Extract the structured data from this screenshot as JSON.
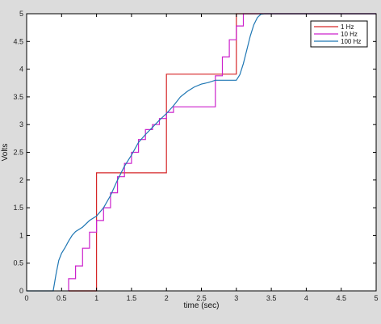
{
  "chart_data": {
    "type": "line",
    "xlabel": "time (sec)",
    "ylabel": "Volts",
    "xlim": [
      0,
      5
    ],
    "ylim": [
      0,
      5
    ],
    "xticks": [
      0,
      0.5,
      1,
      1.5,
      2,
      2.5,
      3,
      3.5,
      4,
      4.5,
      5
    ],
    "xtick_labels": [
      "0",
      "0.5",
      "1",
      "1.5",
      "2",
      "2.5",
      "3",
      "3.5",
      "4",
      "4.5",
      "5"
    ],
    "yticks": [
      0,
      0.5,
      1,
      1.5,
      2,
      2.5,
      3,
      3.5,
      4,
      4.5,
      5
    ],
    "ytick_labels": [
      "0",
      "0.5",
      "1",
      "1.5",
      "2",
      "2.5",
      "3",
      "3.5",
      "4",
      "4.5",
      "5"
    ],
    "grid": false,
    "legend_position": "top-right",
    "series": [
      {
        "name": "1 Hz",
        "color": "#d62728",
        "step": true,
        "x": [
          0.6,
          1,
          2,
          3,
          5
        ],
        "y": [
          0,
          2.13,
          3.91,
          5,
          5
        ]
      },
      {
        "name": "10 Hz",
        "color": "#cc22cc",
        "step": true,
        "x": [
          0.6,
          0.7,
          0.8,
          0.9,
          1.0,
          1.1,
          1.2,
          1.3,
          1.4,
          1.5,
          1.6,
          1.7,
          1.8,
          1.9,
          2.0,
          2.1,
          2.7,
          2.8,
          2.9,
          3.0,
          3.1,
          5.0
        ],
        "y": [
          0.22,
          0.45,
          0.77,
          1.06,
          1.27,
          1.5,
          1.77,
          2.06,
          2.3,
          2.5,
          2.73,
          2.91,
          3.0,
          3.11,
          3.22,
          3.32,
          3.88,
          4.22,
          4.53,
          4.78,
          5,
          5
        ]
      },
      {
        "name": "100 Hz",
        "color": "#1f77b4",
        "step": false,
        "x": [
          0,
          0.38,
          0.42,
          0.46,
          0.5,
          0.55,
          0.6,
          0.65,
          0.7,
          0.8,
          0.9,
          1.0,
          1.1,
          1.2,
          1.3,
          1.4,
          1.5,
          1.6,
          1.7,
          1.8,
          1.9,
          2.0,
          2.1,
          2.2,
          2.3,
          2.4,
          2.5,
          2.6,
          2.7,
          2.8,
          2.9,
          3.0,
          3.05,
          3.1,
          3.15,
          3.2,
          3.25,
          3.3,
          3.35,
          3.4,
          5
        ],
        "y": [
          0,
          0,
          0.3,
          0.55,
          0.68,
          0.78,
          0.9,
          1.0,
          1.07,
          1.15,
          1.27,
          1.35,
          1.5,
          1.72,
          2.0,
          2.25,
          2.45,
          2.68,
          2.82,
          2.95,
          3.08,
          3.2,
          3.34,
          3.5,
          3.6,
          3.68,
          3.73,
          3.76,
          3.8,
          3.8,
          3.8,
          3.8,
          3.9,
          4.1,
          4.35,
          4.6,
          4.8,
          4.93,
          4.99,
          5,
          5
        ]
      }
    ]
  }
}
